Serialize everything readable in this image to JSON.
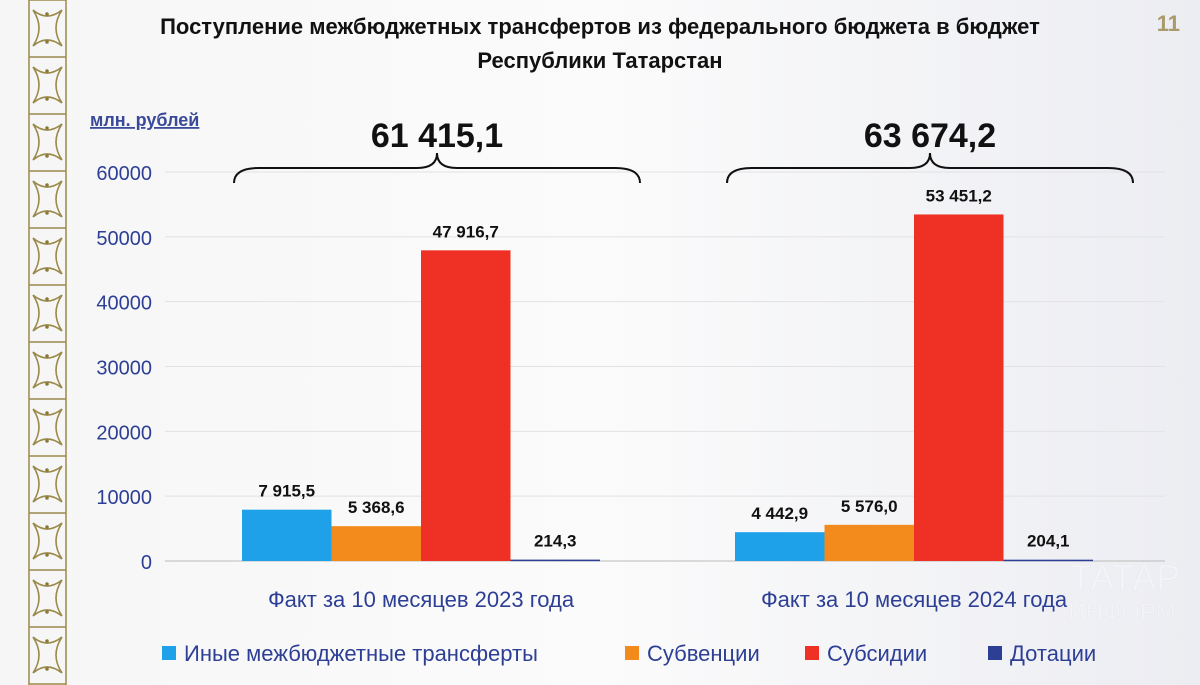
{
  "page_number": "11",
  "watermark": {
    "line1": "ТАТАР",
    "line2": "ИНФОРМ"
  },
  "chart_data": {
    "type": "bar",
    "title": "Поступление межбюджетных трансфертов из федерального бюджета в бюджет Республики Татарстан",
    "title_lines": [
      "Поступление межбюджетных трансфертов из федерального бюджета в бюджет",
      "Республики Татарстан"
    ],
    "ylabel": "млн. рублей",
    "ylim": [
      0,
      60000
    ],
    "yticks": [
      0,
      10000,
      20000,
      30000,
      40000,
      50000,
      60000
    ],
    "grid": true,
    "categories": [
      "Факт за 10 месяцев 2023 года",
      "Факт за 10 месяцев 2024 года"
    ],
    "totals": [
      "61 415,1",
      "63 674,2"
    ],
    "series": [
      {
        "name": "Иные межбюджетные трансферты",
        "color": "#1ea1e8",
        "values": [
          7915.5,
          4442.9
        ],
        "labels": [
          "7 915,5",
          "4 442,9"
        ]
      },
      {
        "name": "Субвенции",
        "color": "#f28a1c",
        "values": [
          5368.6,
          5576.0
        ],
        "labels": [
          "5 368,6",
          "5 576,0"
        ]
      },
      {
        "name": "Субсидии",
        "color": "#ee3124",
        "values": [
          47916.7,
          53451.2
        ],
        "labels": [
          "47 916,7",
          "53 451,2"
        ]
      },
      {
        "name": "Дотации",
        "color": "#2d3f95",
        "values": [
          214.3,
          204.1
        ],
        "labels": [
          "214,3",
          "204,1"
        ]
      }
    ],
    "legend_position": "bottom"
  }
}
